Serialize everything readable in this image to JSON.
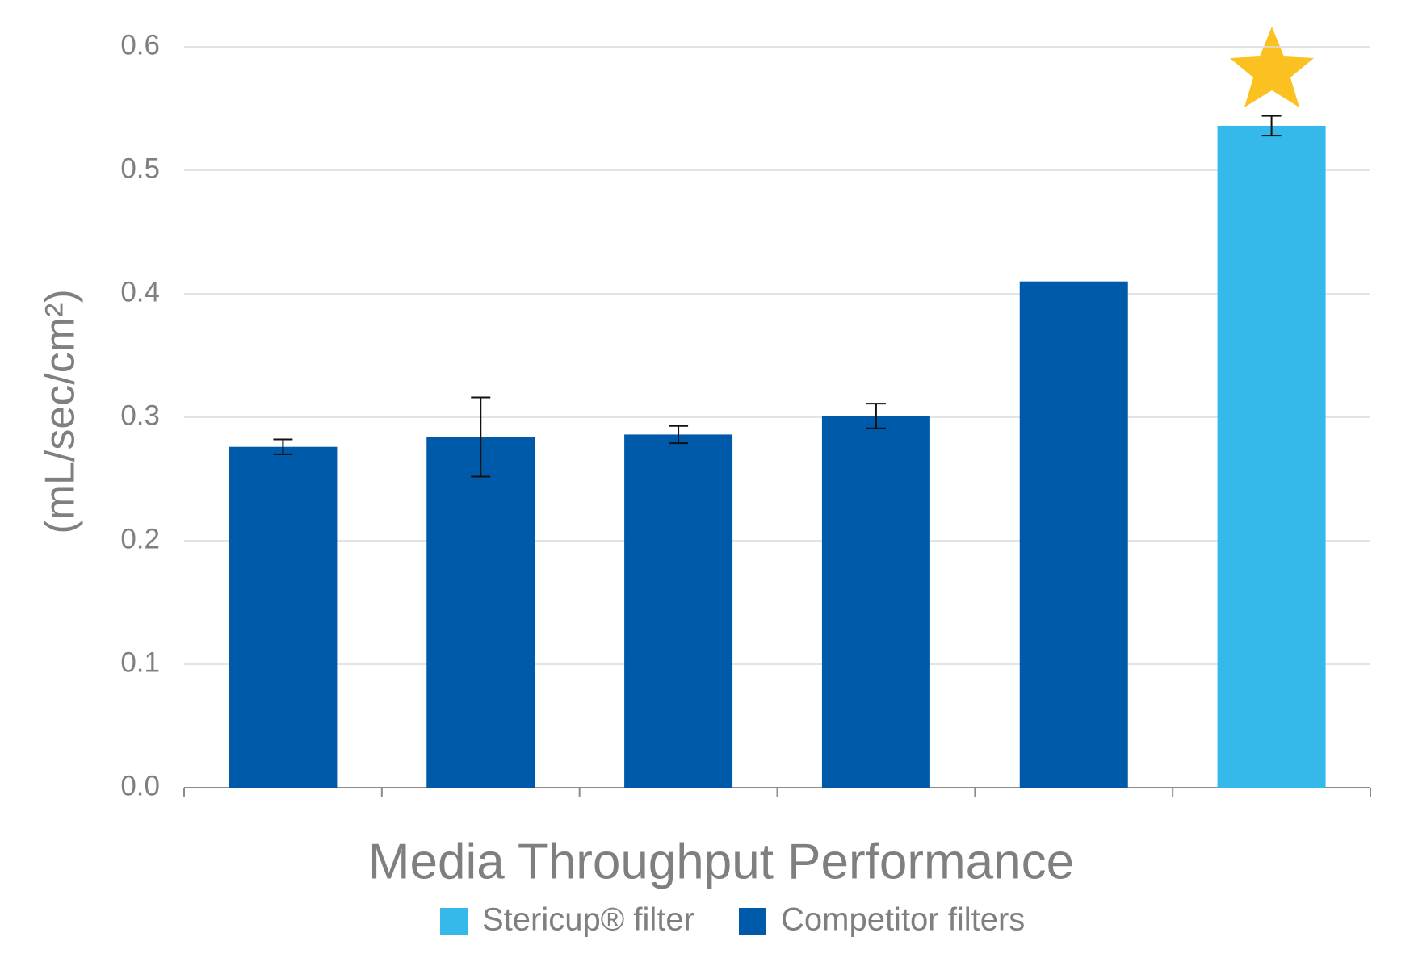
{
  "chart_data": {
    "type": "bar",
    "title": "Media Throughput Performance",
    "y_label": "(mL/sec/cm²)",
    "categories": [
      null,
      null,
      null,
      null,
      null,
      null
    ],
    "series": [
      {
        "name": "Stericup® filter",
        "color": "#35b9ea",
        "values": [
          null,
          null,
          null,
          null,
          null,
          0.536
        ],
        "errors": [
          null,
          null,
          null,
          null,
          null,
          0.008
        ]
      },
      {
        "name": "Competitor filters",
        "color": "#005aaa",
        "values": [
          0.276,
          0.284,
          0.286,
          0.301,
          0.41,
          null
        ],
        "errors": [
          0.006,
          0.032,
          0.007,
          0.01,
          null,
          null
        ]
      }
    ],
    "ylim": [
      0,
      0.6
    ],
    "yticks": [
      {
        "value": 0,
        "label": "0.0"
      },
      0.1,
      0.2,
      0.3,
      0.4,
      0.5,
      0.6
    ],
    "grid": true
  }
}
